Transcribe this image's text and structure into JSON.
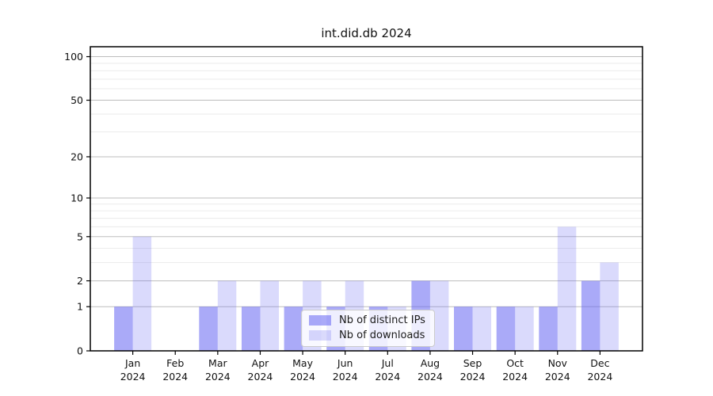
{
  "chart_data": {
    "type": "bar",
    "title": "int.did.db 2024",
    "categories": [
      "Jan",
      "Feb",
      "Mar",
      "Apr",
      "May",
      "Jun",
      "Jul",
      "Aug",
      "Sep",
      "Oct",
      "Nov",
      "Dec"
    ],
    "x_tick_year": "2024",
    "series": [
      {
        "name": "Nb of distinct IPs",
        "color": "#6464f2",
        "opacity": 0.55,
        "values": [
          1,
          0,
          1,
          1,
          1,
          1,
          1,
          2,
          1,
          1,
          1,
          2
        ]
      },
      {
        "name": "Nb of downloads",
        "color": "#6464f2",
        "opacity": 0.24,
        "values": [
          5,
          0,
          2,
          2,
          2,
          2,
          1,
          2,
          1,
          1,
          6,
          3
        ]
      }
    ],
    "y_axis": {
      "scale": "log10(1+value)",
      "major_ticks": [
        0,
        1,
        2,
        5,
        10,
        20,
        50,
        100
      ],
      "minor_ticks": [
        3,
        4,
        6,
        7,
        8,
        9,
        30,
        40,
        60,
        70,
        80,
        90
      ],
      "top_value": 117
    },
    "xlabel": "",
    "ylabel": "",
    "grid": true,
    "legend": {
      "position": "lower-center"
    }
  },
  "colors": {
    "bar_base": "#6464f2",
    "major_grid": "#bdbdbd",
    "minor_grid": "#e9e9e9",
    "axis": "#000000",
    "text": "#111111",
    "legend_border": "#cbcbcb"
  }
}
